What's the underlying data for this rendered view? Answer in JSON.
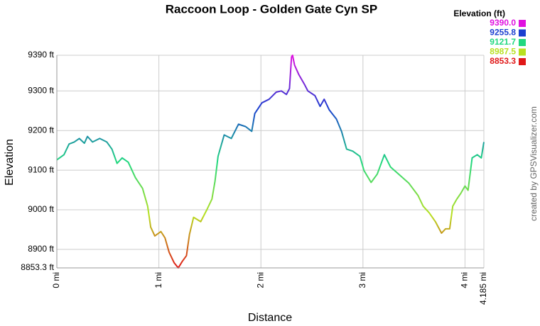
{
  "chart_data": {
    "type": "line",
    "title": "Raccoon Loop - Golden Gate Cyn SP",
    "x_label": "Distance",
    "y_label": "Elevation",
    "credit": "created by GPSVisualizer.com",
    "legend_title": "Elevation (ft)",
    "color_scale": [
      {
        "value": 9390.0,
        "label": "9390.0",
        "color": "#e010e0"
      },
      {
        "value": 9255.8,
        "label": "9255.8",
        "color": "#1a3fd0"
      },
      {
        "value": 9121.7,
        "label": "9121.7",
        "color": "#20d880"
      },
      {
        "value": 8987.5,
        "label": "8987.5",
        "color": "#b8e020"
      },
      {
        "value": 8853.3,
        "label": "8853.3",
        "color": "#e01818"
      }
    ],
    "x": [
      0,
      0.07,
      0.12,
      0.17,
      0.22,
      0.27,
      0.3,
      0.35,
      0.42,
      0.49,
      0.54,
      0.59,
      0.64,
      0.7,
      0.77,
      0.84,
      0.89,
      0.92,
      0.96,
      1.02,
      1.06,
      1.1,
      1.15,
      1.19,
      1.23,
      1.27,
      1.3,
      1.34,
      1.41,
      1.47,
      1.52,
      1.55,
      1.58,
      1.64,
      1.71,
      1.78,
      1.85,
      1.91,
      1.94,
      2.01,
      2.08,
      2.15,
      2.2,
      2.25,
      2.28,
      2.3,
      2.31,
      2.33,
      2.37,
      2.43,
      2.46,
      2.53,
      2.58,
      2.62,
      2.67,
      2.74,
      2.79,
      2.84,
      2.9,
      2.97,
      3.01,
      3.08,
      3.14,
      3.21,
      3.27,
      3.35,
      3.45,
      3.54,
      3.59,
      3.65,
      3.71,
      3.77,
      3.81,
      3.85,
      3.88,
      3.92,
      3.96,
      4.0,
      4.03,
      4.07,
      4.12,
      4.16,
      4.185
    ],
    "series": [
      {
        "name": "Elevation",
        "values": [
          9126,
          9139,
          9166,
          9171,
          9180,
          9168,
          9185,
          9171,
          9180,
          9171,
          9153,
          9117,
          9131,
          9120,
          9081,
          9054,
          9009,
          8956,
          8934,
          8945,
          8929,
          8893,
          8866,
          8853.3,
          8870,
          8884,
          8938,
          8981,
          8970,
          9000,
          9027,
          9072,
          9135,
          9189,
          9180,
          9216,
          9210,
          9198,
          9243,
          9270,
          9279,
          9297,
          9300,
          9291,
          9306,
          9386,
          9390,
          9365,
          9342,
          9315,
          9300,
          9288,
          9261,
          9279,
          9252,
          9229,
          9198,
          9153,
          9148,
          9135,
          9099,
          9069,
          9090,
          9139,
          9108,
          9090,
          9067,
          9036,
          9009,
          8992,
          8970,
          8941,
          8952,
          8952,
          9009,
          9027,
          9042,
          9060,
          9049,
          9131,
          9139,
          9131,
          9171
        ]
      }
    ],
    "xlim": [
      0,
      4.185
    ],
    "ylim": [
      8853.3,
      9390
    ],
    "xticks": [
      {
        "value": 0,
        "label": "0 mi"
      },
      {
        "value": 1,
        "label": "1 mi"
      },
      {
        "value": 2,
        "label": "2 mi"
      },
      {
        "value": 3,
        "label": "3 mi"
      },
      {
        "value": 4,
        "label": "4 mi"
      },
      {
        "value": 4.185,
        "label": "4.185 mi"
      }
    ],
    "yticks": [
      {
        "value": 8853.3,
        "label": "8853.3 ft"
      },
      {
        "value": 8900,
        "label": "8900 ft"
      },
      {
        "value": 9000,
        "label": "9000 ft"
      },
      {
        "value": 9100,
        "label": "9100 ft"
      },
      {
        "value": 9200,
        "label": "9200 ft"
      },
      {
        "value": 9300,
        "label": "9300 ft"
      },
      {
        "value": 9390,
        "label": "9390 ft"
      }
    ],
    "grid": true
  }
}
